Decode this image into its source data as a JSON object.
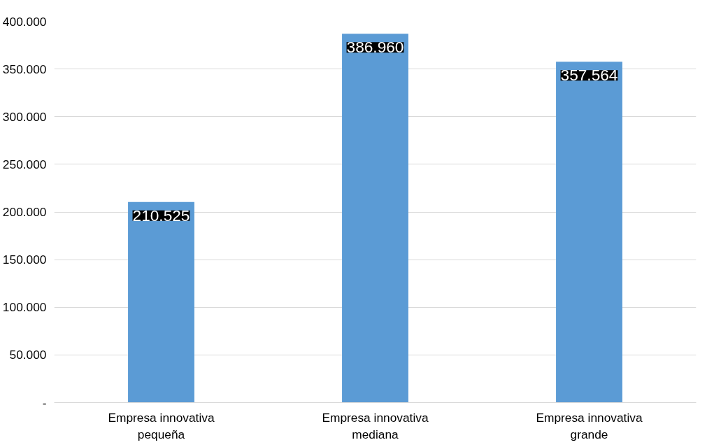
{
  "chart_data": {
    "type": "bar",
    "categories": [
      "Empresa innovativa pequeña",
      "Empresa innovativa mediana",
      "Empresa innovativa grande"
    ],
    "values": [
      210525,
      386960,
      357564
    ],
    "value_labels": [
      "210.525",
      "386.960",
      "357.564"
    ],
    "color": "#5b9bd5",
    "ylim": [
      0,
      400000
    ],
    "yticks": [
      {
        "value": 0,
        "label": "-"
      },
      {
        "value": 50000,
        "label": "50.000"
      },
      {
        "value": 100000,
        "label": "100.000"
      },
      {
        "value": 150000,
        "label": "150.000"
      },
      {
        "value": 200000,
        "label": "200.000"
      },
      {
        "value": 250000,
        "label": "250.000"
      },
      {
        "value": 300000,
        "label": "300.000"
      },
      {
        "value": 350000,
        "label": "350.000"
      },
      {
        "value": 400000,
        "label": "400.000"
      }
    ],
    "grid": "y"
  }
}
